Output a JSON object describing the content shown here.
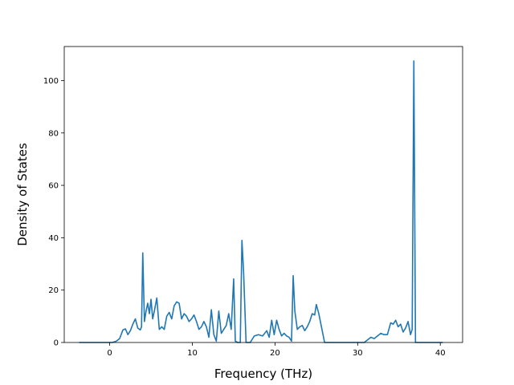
{
  "chart_data": {
    "type": "line",
    "title": "",
    "xlabel": "Frequency (THz)",
    "ylabel": "Density of States",
    "xlim": [
      -5.5,
      42.7
    ],
    "ylim": [
      0,
      113
    ],
    "xticks": [
      0,
      10,
      20,
      30,
      40
    ],
    "yticks": [
      0,
      20,
      40,
      60,
      80,
      100
    ],
    "grid": false,
    "legend": "none",
    "line_color": "#1f77b4",
    "series": [
      {
        "x": [
          -3.7,
          -2.5,
          -1.5,
          -0.5,
          0.3,
          0.8,
          1.2,
          1.6,
          1.9,
          2.2,
          2.5,
          2.8,
          3.1,
          3.4,
          3.7,
          3.85,
          4.0,
          4.2,
          4.4,
          4.6,
          4.8,
          5.0,
          5.2,
          5.4,
          5.7,
          6.0,
          6.3,
          6.6,
          6.9,
          7.2,
          7.5,
          7.8,
          8.1,
          8.4,
          8.7,
          9.0,
          9.3,
          9.6,
          9.9,
          10.2,
          10.5,
          10.8,
          11.1,
          11.4,
          11.7,
          12.0,
          12.3,
          12.6,
          12.9,
          13.2,
          13.5,
          13.8,
          14.1,
          14.4,
          14.7,
          15.0,
          15.2,
          15.5,
          15.8,
          16.0,
          16.2,
          16.5,
          17.0,
          17.5,
          18.0,
          18.5,
          19.0,
          19.3,
          19.6,
          19.9,
          20.2,
          20.5,
          20.8,
          21.1,
          21.4,
          21.7,
          22.0,
          22.2,
          22.4,
          22.7,
          23.0,
          23.3,
          23.6,
          23.9,
          24.2,
          24.5,
          24.8,
          25.0,
          25.3,
          26,
          28,
          30,
          30.8,
          31.2,
          31.6,
          32.0,
          32.4,
          32.8,
          33.2,
          33.6,
          34.0,
          34.3,
          34.6,
          34.9,
          35.2,
          35.5,
          35.8,
          36.1,
          36.4,
          36.6,
          36.8,
          37.0,
          37.3,
          38,
          39,
          40.3
        ],
        "values": [
          0,
          0,
          0,
          0,
          0,
          0.5,
          1.5,
          4.8,
          5.2,
          3.0,
          4.5,
          7.0,
          9.0,
          5.5,
          4.8,
          6.0,
          34.2,
          8.0,
          12.0,
          15.0,
          11.0,
          16.5,
          9.0,
          12.0,
          17.0,
          5.0,
          6.0,
          5.0,
          10.0,
          11.5,
          9.0,
          14.0,
          15.5,
          15.0,
          9.0,
          11.0,
          10.0,
          8.0,
          9.0,
          10.5,
          8.0,
          5.0,
          6.0,
          8.0,
          6.0,
          2.0,
          12.5,
          3.0,
          0.5,
          12.0,
          3.5,
          5.0,
          6.5,
          11.0,
          5.0,
          24.3,
          0.5,
          0,
          0,
          39.0,
          27.0,
          0,
          0,
          2.5,
          3.0,
          2.5,
          4.5,
          2.0,
          8.5,
          3.0,
          8.5,
          5.0,
          2.5,
          3.5,
          2.5,
          2.0,
          0.5,
          25.5,
          12.0,
          5.0,
          6.0,
          6.5,
          4.5,
          6.0,
          8.0,
          11.0,
          10.5,
          14.5,
          11.0,
          0,
          0,
          0,
          0,
          1.0,
          2.0,
          1.5,
          2.5,
          3.5,
          3.0,
          3.0,
          7.5,
          7.0,
          8.5,
          6.0,
          7.0,
          4.0,
          5.5,
          8.0,
          3.0,
          5.0,
          107.5,
          0,
          0,
          0,
          0,
          0
        ]
      }
    ]
  }
}
